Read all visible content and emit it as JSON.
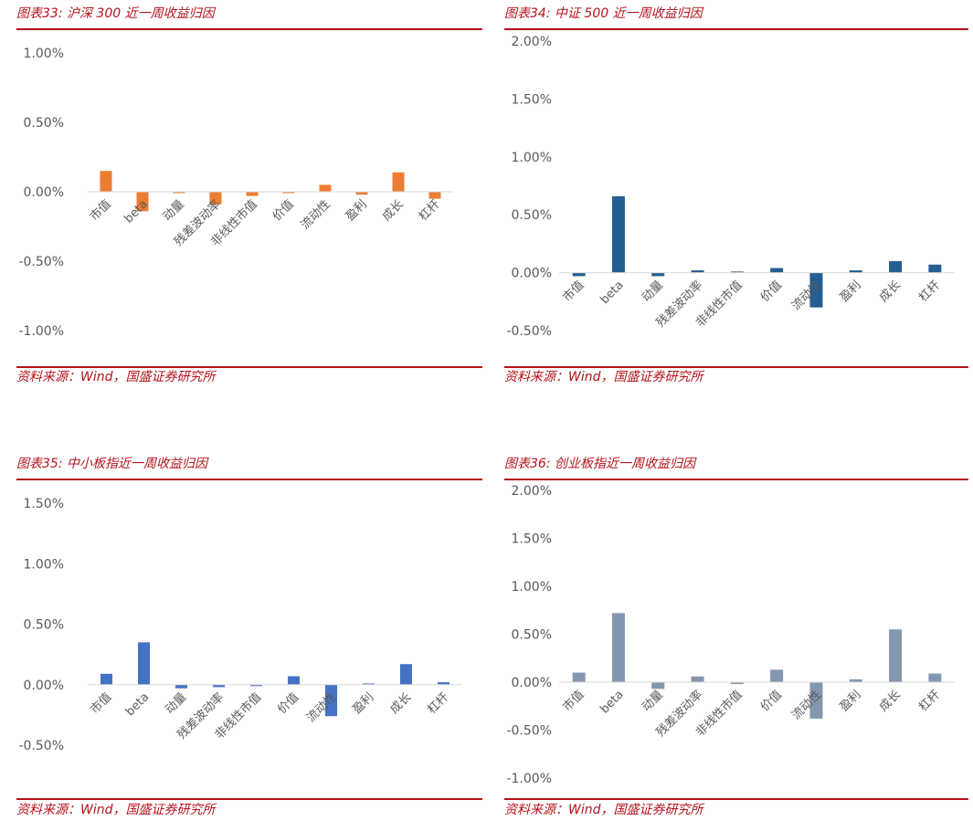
{
  "source_text": "资料来源：Wind，国盛证券研究所",
  "categories": [
    "市值",
    "beta",
    "动量",
    "残差波动率",
    "非线性市值",
    "价值",
    "流动性",
    "盈利",
    "成长",
    "杠杆"
  ],
  "chart_data": [
    {
      "type": "bar",
      "title": "图表33:  沪深 300 近一周收益归因",
      "color": "#ed7d31",
      "ylim": [
        -1.0,
        1.0
      ],
      "yticks": [
        1.0,
        0.5,
        0.0,
        -0.5,
        -1.0
      ],
      "ytick_labels": [
        "1.00%",
        "0.50%",
        "0.00%",
        "-0.50%",
        "-1.00%"
      ],
      "categories": [
        "市值",
        "beta",
        "动量",
        "残差波动率",
        "非线性市值",
        "价值",
        "流动性",
        "盈利",
        "成长",
        "杠杆"
      ],
      "values": [
        0.15,
        -0.14,
        0.0,
        -0.09,
        -0.03,
        0.0,
        0.05,
        -0.02,
        0.14,
        -0.05
      ]
    },
    {
      "type": "bar",
      "title": "图表34:  中证 500 近一周收益归因",
      "color": "#255e91",
      "ylim": [
        -0.5,
        2.0
      ],
      "yticks": [
        2.0,
        1.5,
        1.0,
        0.5,
        0.0,
        -0.5
      ],
      "ytick_labels": [
        "2.00%",
        "1.50%",
        "1.00%",
        "0.50%",
        "0.00%",
        "-0.50%"
      ],
      "categories": [
        "市值",
        "beta",
        "动量",
        "残差波动率",
        "非线性市值",
        "价值",
        "流动性",
        "盈利",
        "成长",
        "杠杆"
      ],
      "values": [
        -0.03,
        0.66,
        -0.03,
        0.02,
        0.01,
        0.04,
        -0.3,
        0.02,
        0.1,
        0.07
      ]
    },
    {
      "type": "bar",
      "title": "图表35:  中小板指近一周收益归因",
      "color": "#4472c4",
      "ylim": [
        -0.5,
        1.5
      ],
      "yticks": [
        1.5,
        1.0,
        0.5,
        0.0,
        -0.5
      ],
      "ytick_labels": [
        "1.50%",
        "1.00%",
        "0.50%",
        "0.00%",
        "-0.50%"
      ],
      "categories": [
        "市值",
        "beta",
        "动量",
        "残差波动率",
        "非线性市值",
        "价值",
        "流动性",
        "盈利",
        "成长",
        "杠杆"
      ],
      "values": [
        0.09,
        0.35,
        -0.03,
        -0.02,
        -0.01,
        0.07,
        -0.26,
        0.01,
        0.17,
        0.02
      ]
    },
    {
      "type": "bar",
      "title": "图表36:  创业板指近一周收益归因",
      "color": "#8497b0",
      "ylim": [
        -1.0,
        2.0
      ],
      "yticks": [
        2.0,
        1.5,
        1.0,
        0.5,
        0.0,
        -0.5,
        -1.0
      ],
      "ytick_labels": [
        "2.00%",
        "1.50%",
        "1.00%",
        "0.50%",
        "0.00%",
        "-0.50%",
        "-1.00%"
      ],
      "categories": [
        "市值",
        "beta",
        "动量",
        "残差波动率",
        "非线性市值",
        "价值",
        "流动性",
        "盈利",
        "成长",
        "杠杆"
      ],
      "values": [
        0.1,
        0.72,
        -0.07,
        0.06,
        -0.02,
        0.13,
        -0.38,
        0.03,
        0.55,
        0.09
      ]
    }
  ]
}
